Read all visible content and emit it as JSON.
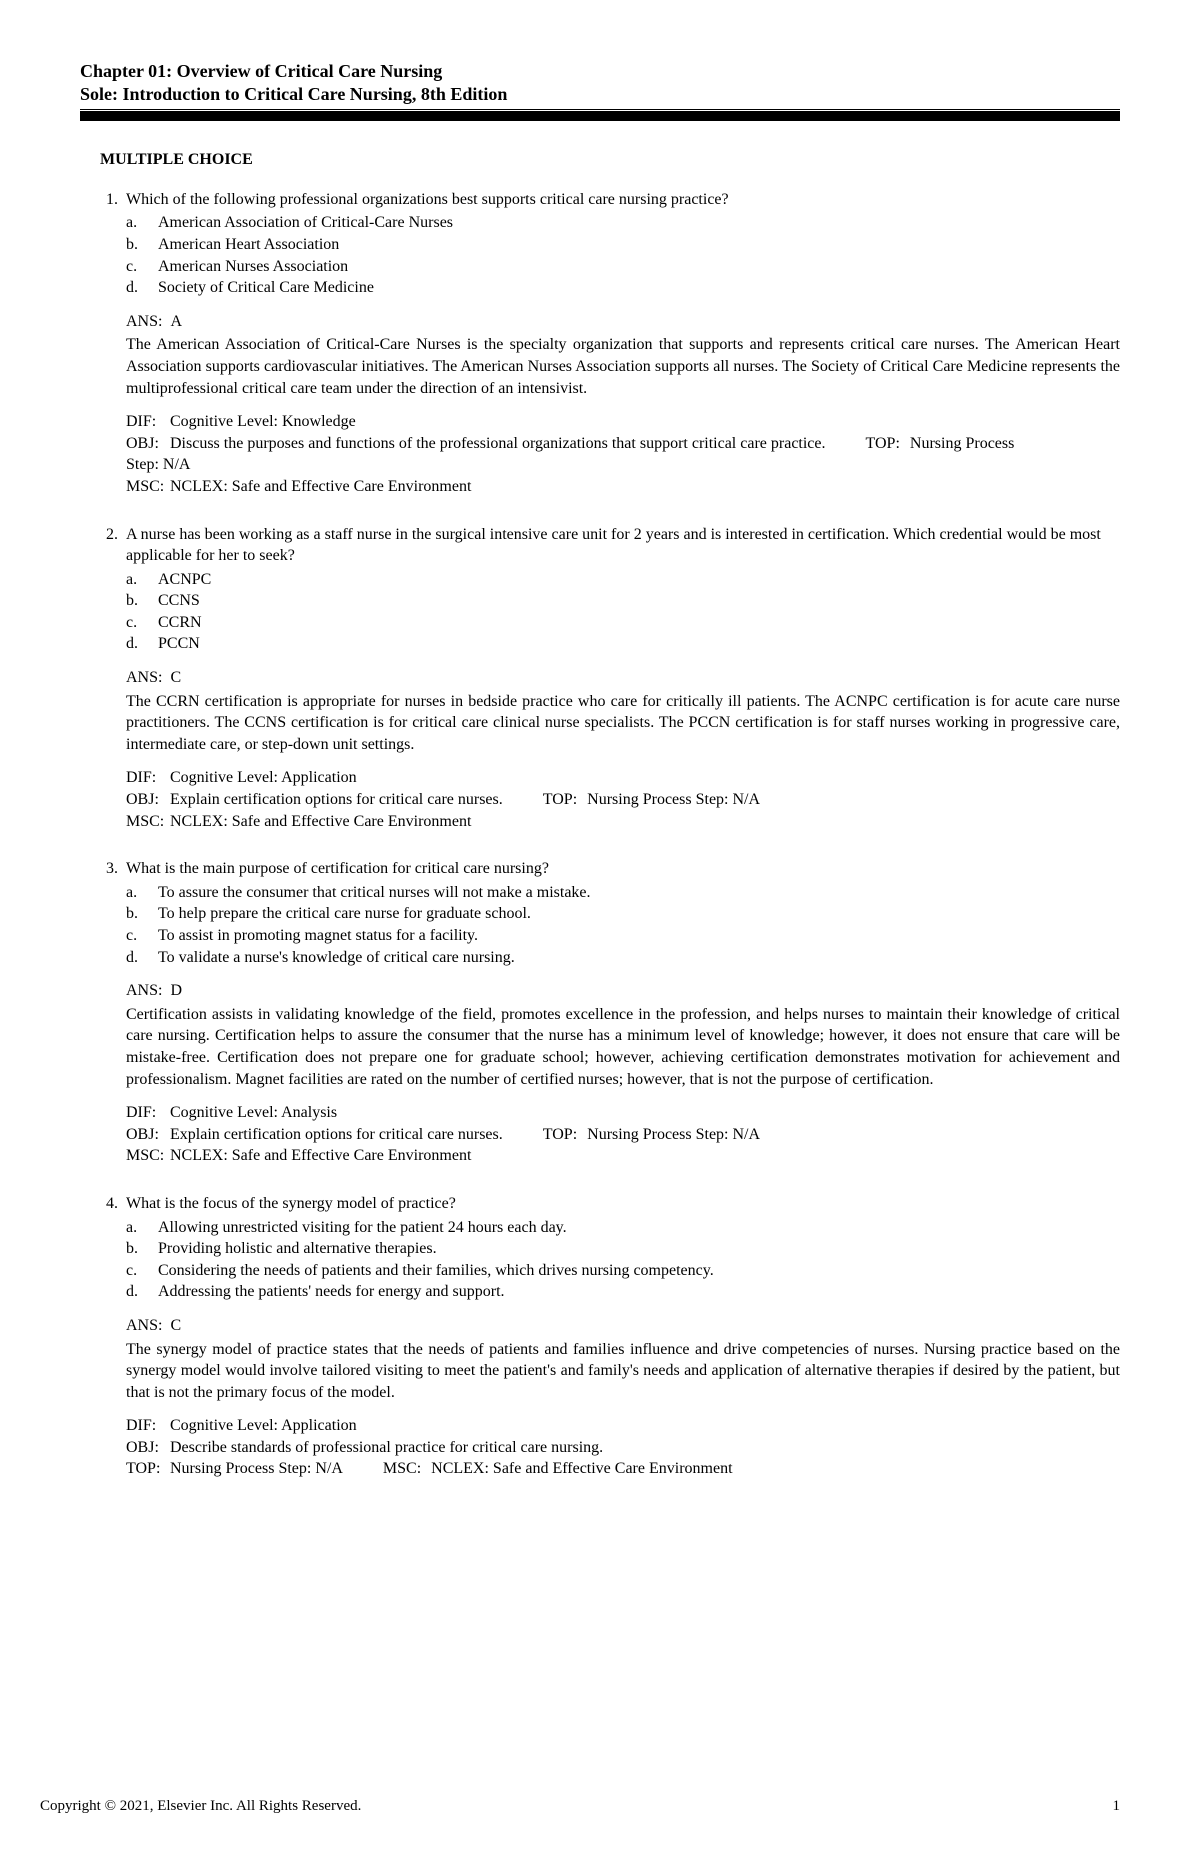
{
  "header": {
    "line1": "Chapter 01: Overview of Critical Care Nursing",
    "line2": "Sole: Introduction to Critical Care Nursing, 8th Edition"
  },
  "section_heading": "MULTIPLE CHOICE",
  "questions": [
    {
      "num": "1.",
      "text": "Which of the following professional organizations best supports critical care nursing practice?",
      "options": [
        {
          "l": "a.",
          "t": "American Association of Critical-Care Nurses"
        },
        {
          "l": "b.",
          "t": "American Heart Association"
        },
        {
          "l": "c.",
          "t": "American Nurses Association"
        },
        {
          "l": "d.",
          "t": "Society of Critical Care Medicine"
        }
      ],
      "ans_label": "ANS:",
      "ans": "A",
      "explanation": "The American Association of Critical-Care Nurses is the specialty organization that supports and represents critical care nurses. The American Heart Association supports cardiovascular initiatives. The American Nurses Association supports all nurses. The Society of Critical Care Medicine represents the multiprofessional critical care team under the direction of an intensivist.",
      "meta": [
        [
          {
            "k": "DIF:",
            "v": "Cognitive Level: Knowledge"
          }
        ],
        [
          {
            "k": "OBJ:",
            "v": "Discuss the purposes and functions of the professional organizations that support critical care practice."
          },
          {
            "k": "TOP:",
            "v": "Nursing Process"
          }
        ],
        [
          {
            "k": "",
            "v": "Step: N/A",
            "cont": true
          }
        ],
        [
          {
            "k": "MSC:",
            "v": "NCLEX: Safe and Effective Care Environment"
          }
        ]
      ]
    },
    {
      "num": "2.",
      "text": "A nurse has been working as a staff nurse in the surgical intensive care unit for 2 years and is interested in certification. Which credential would be most applicable for her to seek?",
      "options": [
        {
          "l": "a.",
          "t": "ACNPC"
        },
        {
          "l": "b.",
          "t": "CCNS"
        },
        {
          "l": "c.",
          "t": "CCRN"
        },
        {
          "l": "d.",
          "t": "PCCN"
        }
      ],
      "ans_label": "ANS:",
      "ans": "C",
      "explanation": "The CCRN certification is appropriate for nurses in bedside practice who care for critically ill patients. The ACNPC certification is for acute care nurse practitioners. The CCNS certification is for critical care clinical nurse specialists. The PCCN certification is for staff nurses working in progressive care, intermediate care, or step-down unit settings.",
      "meta": [
        [
          {
            "k": "DIF:",
            "v": "Cognitive Level: Application"
          }
        ],
        [
          {
            "k": "OBJ:",
            "v": "Explain certification options for critical care nurses."
          },
          {
            "k": "TOP:",
            "v": "Nursing Process Step: N/A"
          }
        ],
        [
          {
            "k": "MSC:",
            "v": "NCLEX: Safe and Effective Care Environment"
          }
        ]
      ]
    },
    {
      "num": "3.",
      "text": "What is the main purpose of certification for critical care nursing?",
      "options": [
        {
          "l": "a.",
          "t": "To assure the consumer that critical nurses will not make a mistake."
        },
        {
          "l": "b.",
          "t": "To help prepare the critical care nurse for graduate school."
        },
        {
          "l": "c.",
          "t": "To assist in promoting magnet status for a facility."
        },
        {
          "l": "d.",
          "t": "To validate a nurse's knowledge of critical care nursing."
        }
      ],
      "ans_label": "ANS:",
      "ans": "D",
      "explanation": "Certification assists in validating knowledge of the field, promotes excellence in the profession, and helps nurses to maintain their knowledge of critical care nursing. Certification helps to assure the consumer that the nurse has a minimum level of knowledge; however, it does not ensure that care will be mistake-free. Certification does not prepare one for graduate school; however, achieving certification demonstrates motivation for achievement and professionalism. Magnet facilities are rated on the number of certified nurses; however, that is not the purpose of certification.",
      "meta": [
        [
          {
            "k": "DIF:",
            "v": "Cognitive Level: Analysis"
          }
        ],
        [
          {
            "k": "OBJ:",
            "v": "Explain certification options for critical care nurses."
          },
          {
            "k": "TOP:",
            "v": "Nursing Process Step: N/A"
          }
        ],
        [
          {
            "k": "MSC:",
            "v": "NCLEX: Safe and Effective Care Environment"
          }
        ]
      ]
    },
    {
      "num": "4.",
      "text": "What is the focus of the synergy model of practice?",
      "options": [
        {
          "l": "a.",
          "t": "Allowing unrestricted visiting for the patient 24 hours each day."
        },
        {
          "l": "b.",
          "t": "Providing holistic and alternative therapies."
        },
        {
          "l": "c.",
          "t": "Considering the needs of patients and their families, which drives nursing competency."
        },
        {
          "l": "d.",
          "t": "Addressing the patients' needs for energy and support."
        }
      ],
      "ans_label": "ANS:",
      "ans": "C",
      "explanation": "The synergy model of practice states that the needs of patients and families influence and drive competencies of nurses. Nursing practice based on the synergy model would involve tailored visiting to meet the patient's and family's needs and application of alternative therapies if desired by the patient, but that is not the primary focus of the model.",
      "meta": [
        [
          {
            "k": "DIF:",
            "v": "Cognitive Level: Application"
          }
        ],
        [
          {
            "k": "OBJ:",
            "v": "Describe standards of professional practice for critical care nursing."
          }
        ],
        [
          {
            "k": "TOP:",
            "v": "Nursing Process Step: N/A"
          },
          {
            "k": "MSC:",
            "v": "NCLEX: Safe and Effective Care Environment"
          }
        ]
      ]
    }
  ],
  "footer": {
    "copyright": "Copyright © 2021, Elsevier Inc. All Rights Reserved.",
    "page": "1"
  }
}
